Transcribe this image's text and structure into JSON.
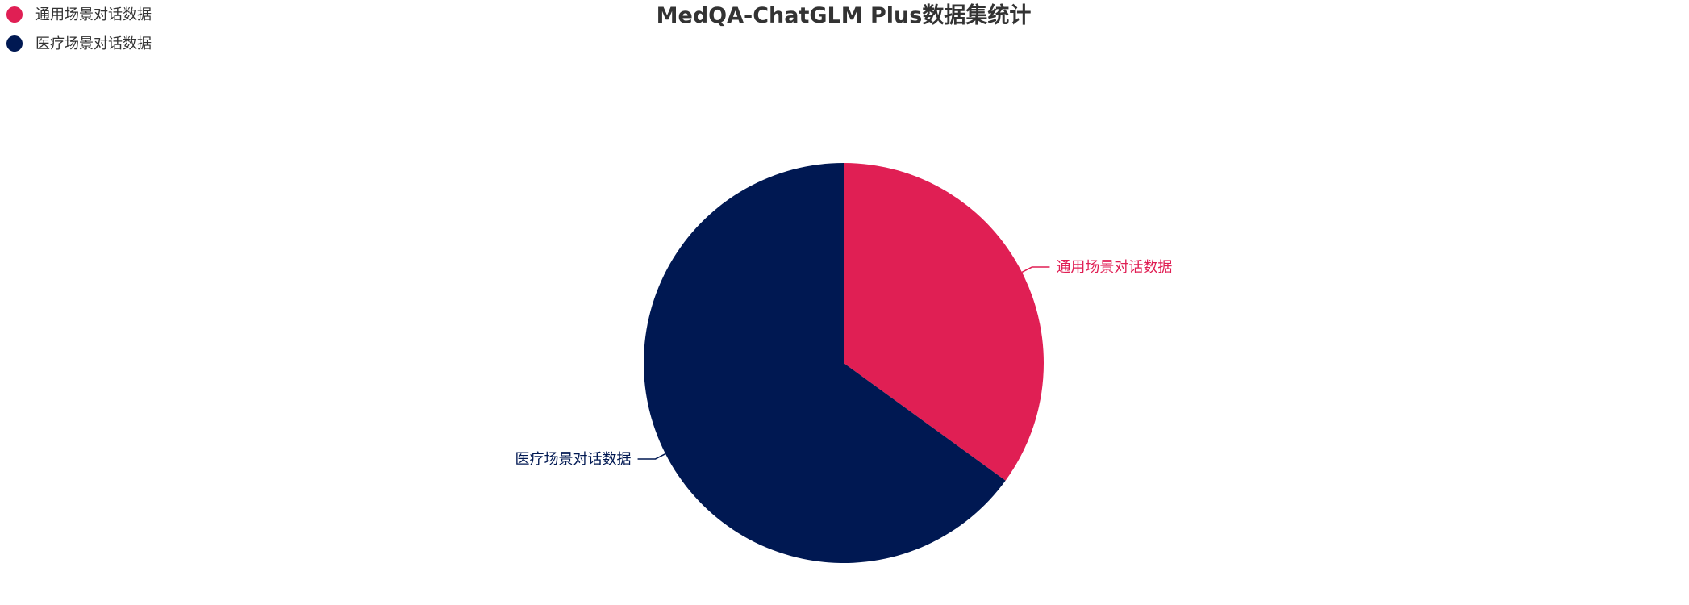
{
  "chart_data": {
    "type": "pie",
    "title": "MedQA-ChatGLM Plus数据集统计",
    "legend_position": "top-left",
    "slices": [
      {
        "label": "通用场景对话数据",
        "value": 35,
        "color": "#E01F54"
      },
      {
        "label": "医疗场景对话数据",
        "value": 65,
        "color": "#001852"
      }
    ]
  }
}
